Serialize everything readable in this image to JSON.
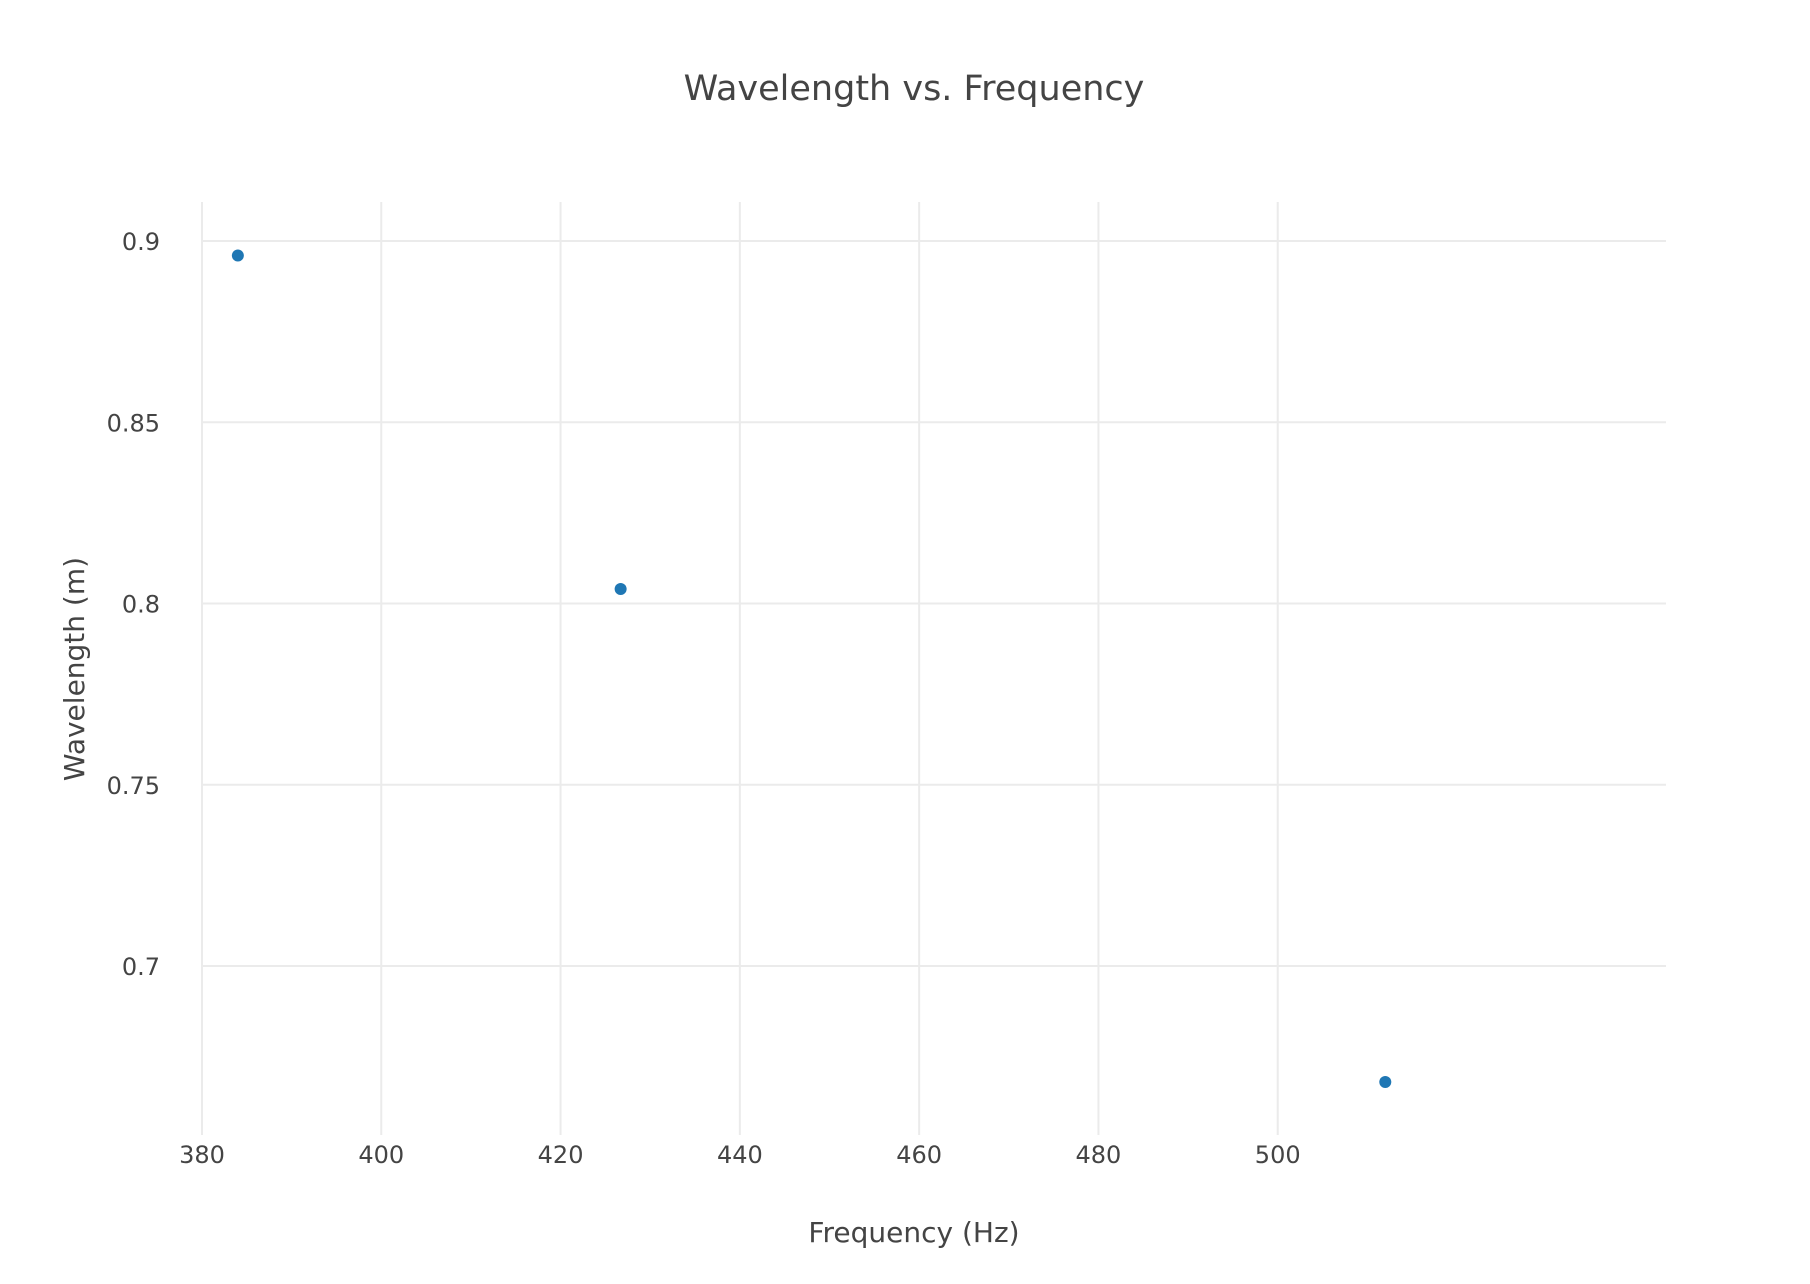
{
  "chart_data": {
    "type": "scatter",
    "title": "Wavelength vs. Frequency",
    "xlabel": "Frequency (Hz)",
    "ylabel": "Wavelength (m)",
    "xlim": [
      380,
      520
    ],
    "ylim": [
      0.66,
      0.91
    ],
    "x_ticks": [
      380,
      400,
      420,
      440,
      460,
      480,
      500
    ],
    "y_ticks": [
      0.7,
      0.75,
      0.8,
      0.85,
      0.9
    ],
    "x_tick_labels": [
      "380",
      "400",
      "420",
      "440",
      "460",
      "480",
      "500"
    ],
    "y_tick_labels": [
      "0.7",
      "0.75",
      "0.8",
      "0.85",
      "0.9"
    ],
    "grid": true,
    "marker_color": "#1f77b4",
    "series": [
      {
        "x": [
          384,
          426.7,
          512
        ],
        "y": [
          0.896,
          0.804,
          0.668
        ]
      }
    ]
  }
}
